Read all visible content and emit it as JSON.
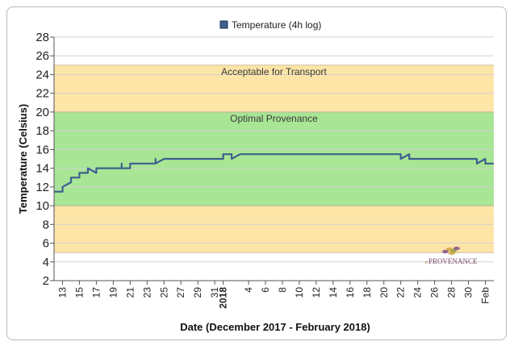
{
  "chart_data": {
    "type": "line",
    "xlabel": "Date (December 2017 - February 2018)",
    "ylabel": "Temperature (Celsius)",
    "ylim": [
      2,
      28
    ],
    "yticks": [
      2,
      4,
      6,
      8,
      10,
      12,
      14,
      16,
      18,
      20,
      22,
      24,
      26,
      28
    ],
    "xlim": [
      "2017-12-12",
      "2018-02-02"
    ],
    "xticks": [
      {
        "date": "2017-12-13",
        "label": "13"
      },
      {
        "date": "2017-12-15",
        "label": "15"
      },
      {
        "date": "2017-12-17",
        "label": "17"
      },
      {
        "date": "2017-12-19",
        "label": "19"
      },
      {
        "date": "2017-12-21",
        "label": "21"
      },
      {
        "date": "2017-12-23",
        "label": "23"
      },
      {
        "date": "2017-12-25",
        "label": "25"
      },
      {
        "date": "2017-12-27",
        "label": "27"
      },
      {
        "date": "2017-12-29",
        "label": "29"
      },
      {
        "date": "2017-12-31",
        "label": "31"
      },
      {
        "date": "2018-01-01",
        "label": "2018",
        "bold": true
      },
      {
        "date": "2018-01-04",
        "label": "4"
      },
      {
        "date": "2018-01-06",
        "label": "6"
      },
      {
        "date": "2018-01-08",
        "label": "8"
      },
      {
        "date": "2018-01-10",
        "label": "10"
      },
      {
        "date": "2018-01-12",
        "label": "12"
      },
      {
        "date": "2018-01-14",
        "label": "14"
      },
      {
        "date": "2018-01-16",
        "label": "16"
      },
      {
        "date": "2018-01-18",
        "label": "18"
      },
      {
        "date": "2018-01-20",
        "label": "20"
      },
      {
        "date": "2018-01-22",
        "label": "22"
      },
      {
        "date": "2018-01-24",
        "label": "24"
      },
      {
        "date": "2018-01-26",
        "label": "26"
      },
      {
        "date": "2018-01-28",
        "label": "28"
      },
      {
        "date": "2018-01-30",
        "label": "30"
      },
      {
        "date": "2018-02-01",
        "label": "Feb"
      }
    ],
    "grid": true,
    "legend": {
      "placement": "top-center"
    },
    "bands": [
      {
        "label": "Acceptable for Transport",
        "from": 5,
        "to": 25,
        "color": "#fde5a8"
      },
      {
        "label": "Optimal Provenance",
        "from": 10,
        "to": 20,
        "color": "#a8e595"
      }
    ],
    "series": [
      {
        "name": "Temperature (4h log)",
        "color": "#3f5f8e",
        "points": [
          [
            "2017-12-12",
            11.5
          ],
          [
            "2017-12-13",
            11.5
          ],
          [
            "2017-12-13",
            12.0
          ],
          [
            "2017-12-14",
            12.5
          ],
          [
            "2017-12-14",
            13.0
          ],
          [
            "2017-12-15",
            13.0
          ],
          [
            "2017-12-15",
            13.5
          ],
          [
            "2017-12-16",
            13.5
          ],
          [
            "2017-12-16",
            14.0
          ],
          [
            "2017-12-17",
            13.5
          ],
          [
            "2017-12-17",
            14.0
          ],
          [
            "2017-12-20",
            14.0
          ],
          [
            "2017-12-20",
            14.5
          ],
          [
            "2017-12-20",
            14.0
          ],
          [
            "2017-12-21",
            14.0
          ],
          [
            "2017-12-21",
            14.5
          ],
          [
            "2017-12-24",
            14.5
          ],
          [
            "2017-12-24",
            15.0
          ],
          [
            "2017-12-24",
            14.5
          ],
          [
            "2017-12-25",
            15.0
          ],
          [
            "2018-01-01",
            15.0
          ],
          [
            "2018-01-01",
            15.5
          ],
          [
            "2018-01-02",
            15.5
          ],
          [
            "2018-01-02",
            15.0
          ],
          [
            "2018-01-03",
            15.5
          ],
          [
            "2018-01-22",
            15.5
          ],
          [
            "2018-01-22",
            15.0
          ],
          [
            "2018-01-23",
            15.5
          ],
          [
            "2018-01-23",
            15.0
          ],
          [
            "2018-01-31",
            15.0
          ],
          [
            "2018-01-31",
            14.5
          ],
          [
            "2018-02-01",
            15.0
          ],
          [
            "2018-02-01",
            14.5
          ],
          [
            "2018-02-02",
            14.5
          ]
        ]
      }
    ]
  },
  "watermark": {
    "text": "PROVENANCE",
    "prefix": "e"
  }
}
